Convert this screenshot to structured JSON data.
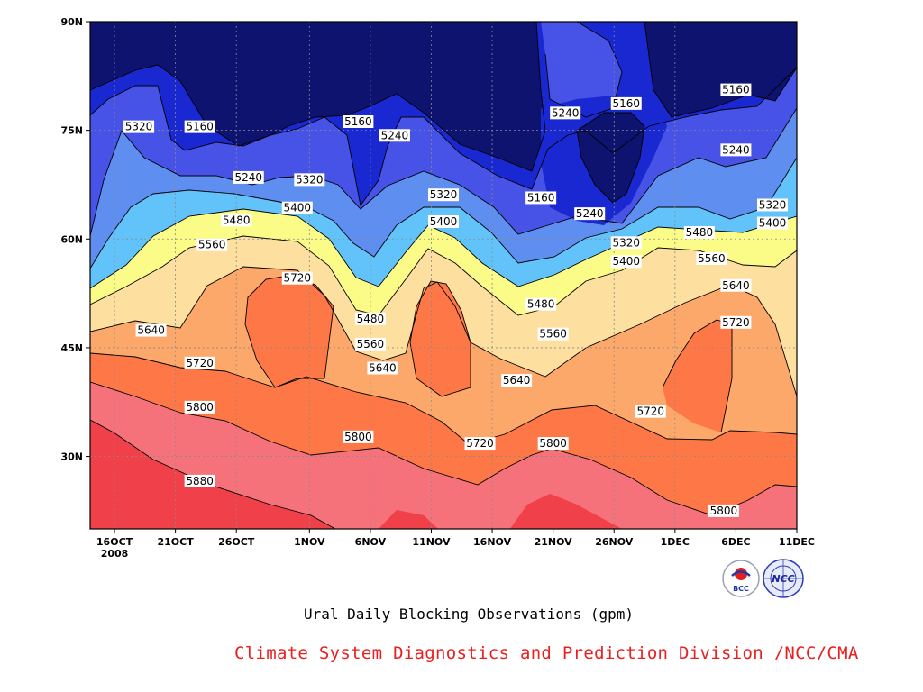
{
  "caption": "Ural Daily Blocking Observations (gpm)",
  "credit": "Climate System Diagnostics and Prediction Division /NCC/CMA",
  "logos": {
    "bcc_text": "BCC",
    "ncc_text": "NCC"
  },
  "chart_data": {
    "type": "heatmap",
    "title": "Ural Daily Blocking Observations (gpm)",
    "x_axis": {
      "ticks": [
        "16OCT",
        "21OCT",
        "26OCT",
        "1NOV",
        "6NOV",
        "11NOV",
        "16NOV",
        "21NOV",
        "26NOV",
        "1DEC",
        "6DEC",
        "11DEC"
      ],
      "year_label": "2008",
      "range": [
        "2008-10-14",
        "2008-12-11"
      ]
    },
    "y_axis": {
      "ticks": [
        "30N",
        "45N",
        "60N",
        "75N",
        "90N"
      ],
      "range": [
        20,
        90
      ],
      "unit": "degrees N"
    },
    "grid": true,
    "contour_levels": [
      5160,
      5240,
      5320,
      5400,
      5480,
      5560,
      5640,
      5720,
      5800,
      5880
    ],
    "colors": [
      "#0e1370",
      "#1a28d2",
      "#4752e6",
      "#5d8ef0",
      "#62c3fb",
      "#fbfb88",
      "#fde0a0",
      "#fca86a",
      "#fd7846",
      "#f6727b",
      "#f0414a"
    ],
    "contour_labels": [
      {
        "date": "2008-10-18",
        "lat": 75.5,
        "text": "5320"
      },
      {
        "date": "2008-10-23",
        "lat": 75.5,
        "text": "5160"
      },
      {
        "date": "2008-10-27",
        "lat": 68.5,
        "text": "5240"
      },
      {
        "date": "2008-11-01",
        "lat": 68.2,
        "text": "5320"
      },
      {
        "date": "2008-11-05",
        "lat": 76.2,
        "text": "5160"
      },
      {
        "date": "2008-11-08",
        "lat": 74.3,
        "text": "5240"
      },
      {
        "date": "2008-10-31",
        "lat": 64.3,
        "text": "5400"
      },
      {
        "date": "2008-10-26",
        "lat": 62.6,
        "text": "5480"
      },
      {
        "date": "2008-10-24",
        "lat": 59.2,
        "text": "5560"
      },
      {
        "date": "2008-10-31",
        "lat": 54.6,
        "text": "5720"
      },
      {
        "date": "2008-10-19",
        "lat": 47.4,
        "text": "5640"
      },
      {
        "date": "2008-10-23",
        "lat": 42.9,
        "text": "5720"
      },
      {
        "date": "2008-10-23",
        "lat": 36.8,
        "text": "5800"
      },
      {
        "date": "2008-10-23",
        "lat": 26.6,
        "text": "5880"
      },
      {
        "date": "2008-11-06",
        "lat": 49.0,
        "text": "5480"
      },
      {
        "date": "2008-11-06",
        "lat": 45.5,
        "text": "5560"
      },
      {
        "date": "2008-11-07",
        "lat": 42.2,
        "text": "5640"
      },
      {
        "date": "2008-11-05",
        "lat": 32.7,
        "text": "5800"
      },
      {
        "date": "2008-11-12",
        "lat": 66.1,
        "text": "5320"
      },
      {
        "date": "2008-11-12",
        "lat": 62.4,
        "text": "5400"
      },
      {
        "date": "2008-11-20",
        "lat": 65.7,
        "text": "5160"
      },
      {
        "date": "2008-11-24",
        "lat": 63.5,
        "text": "5240"
      },
      {
        "date": "2008-11-20",
        "lat": 51.0,
        "text": "5480"
      },
      {
        "date": "2008-11-21",
        "lat": 46.9,
        "text": "5560"
      },
      {
        "date": "2008-11-18",
        "lat": 40.5,
        "text": "5640"
      },
      {
        "date": "2008-11-15",
        "lat": 31.8,
        "text": "5720"
      },
      {
        "date": "2008-11-21",
        "lat": 31.8,
        "text": "5800"
      },
      {
        "date": "2008-11-22",
        "lat": 77.4,
        "text": "5240"
      },
      {
        "date": "2008-11-27",
        "lat": 78.7,
        "text": "5160"
      },
      {
        "date": "2008-11-27",
        "lat": 59.5,
        "text": "5320"
      },
      {
        "date": "2008-11-27",
        "lat": 56.9,
        "text": "5400"
      },
      {
        "date": "2008-12-03",
        "lat": 60.9,
        "text": "5480"
      },
      {
        "date": "2008-12-04",
        "lat": 57.3,
        "text": "5560"
      },
      {
        "date": "2008-12-06",
        "lat": 53.6,
        "text": "5640"
      },
      {
        "date": "2008-12-06",
        "lat": 48.5,
        "text": "5720"
      },
      {
        "date": "2008-11-29",
        "lat": 36.2,
        "text": "5720"
      },
      {
        "date": "2008-12-06",
        "lat": 80.6,
        "text": "5160"
      },
      {
        "date": "2008-12-06",
        "lat": 72.3,
        "text": "5240"
      },
      {
        "date": "2008-12-09",
        "lat": 64.7,
        "text": "5320"
      },
      {
        "date": "2008-12-09",
        "lat": 62.2,
        "text": "5400"
      },
      {
        "date": "2008-12-05",
        "lat": 22.5,
        "text": "5800"
      }
    ]
  }
}
